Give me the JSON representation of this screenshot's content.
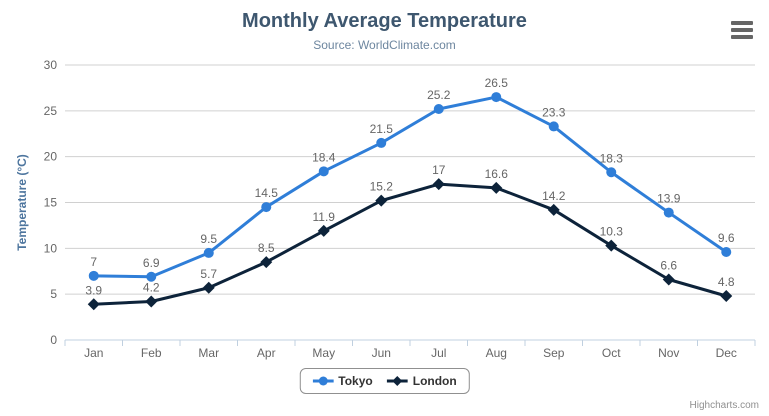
{
  "chart_data": {
    "type": "line",
    "title": "Monthly Average Temperature",
    "subtitle": "Source: WorldClimate.com",
    "categories": [
      "Jan",
      "Feb",
      "Mar",
      "Apr",
      "May",
      "Jun",
      "Jul",
      "Aug",
      "Sep",
      "Oct",
      "Nov",
      "Dec"
    ],
    "series": [
      {
        "name": "Tokyo",
        "color": "#2f7ed8",
        "marker": "circle",
        "values": [
          7,
          6.9,
          9.5,
          14.5,
          18.4,
          21.5,
          25.2,
          26.5,
          23.3,
          18.3,
          13.9,
          9.6
        ]
      },
      {
        "name": "London",
        "color": "#0d233a",
        "marker": "diamond",
        "values": [
          3.9,
          4.2,
          5.7,
          8.5,
          11.9,
          15.2,
          17,
          16.6,
          14.2,
          10.3,
          6.6,
          4.8
        ]
      }
    ],
    "xlabel": "",
    "ylabel": "Temperature (°C)",
    "ylim": [
      0,
      30
    ],
    "yticks": [
      0,
      5,
      10,
      15,
      20,
      25,
      30
    ],
    "grid": true,
    "data_labels": true,
    "legend_position": "bottom",
    "credits": "Highcharts.com"
  },
  "colors": {
    "tokyo_series": "#2f7ed8",
    "london_series": "#0d233a",
    "title_text": "#3e576f",
    "subtitle_text": "#6d869f",
    "axis_title_text": "#4d759e",
    "tick_label": "#666666",
    "data_label": "#666666",
    "gridline": "#d0d0d0",
    "axis_line": "#c0d0e0",
    "legend_border": "#909090",
    "legend_text": "#333333",
    "credits_text": "#909090",
    "menu_icon": "#666666"
  },
  "icons": {
    "context_menu": "hamburger-menu-icon",
    "tokyo_legend": "circle-marker-icon",
    "london_legend": "diamond-marker-icon"
  }
}
